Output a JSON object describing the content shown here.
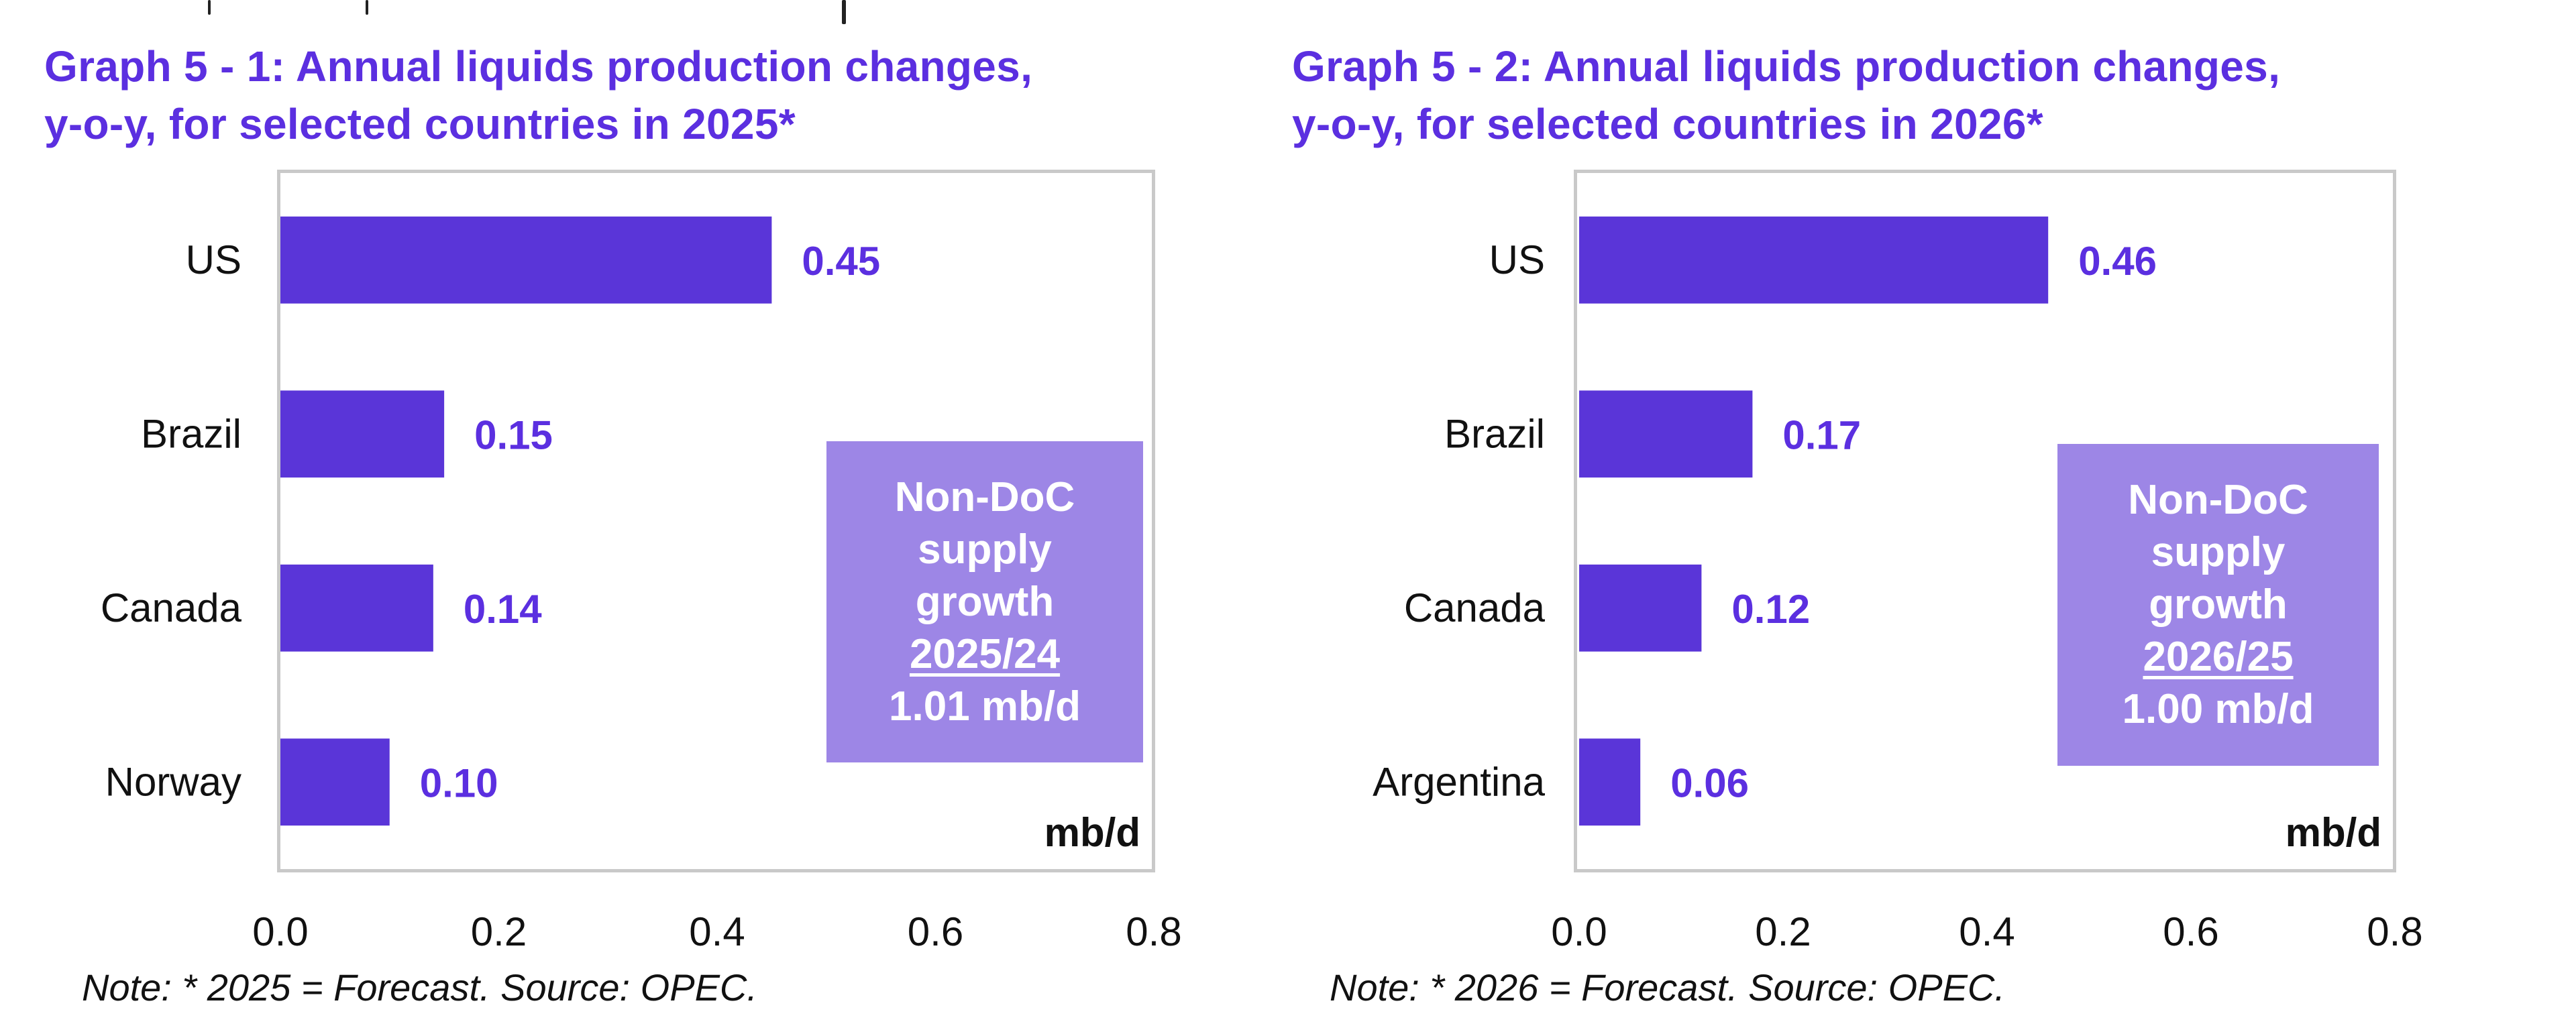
{
  "colors": {
    "title": "#5B2FE0",
    "bar": "#5A35D8",
    "callout_bg": "#9D86E6",
    "callout_text": "#FFFFFF",
    "frame": "#C9C9C9"
  },
  "chart_data": [
    {
      "type": "bar",
      "orientation": "horizontal",
      "title": "Graph 5 - 1: Annual liquids production changes, y-o-y, for selected countries in 2025*",
      "title_lines": [
        "Graph 5 - 1: Annual liquids production changes,",
        "y-o-y, for selected countries in 2025*"
      ],
      "categories": [
        "US",
        "Brazil",
        "Canada",
        "Norway"
      ],
      "values": [
        0.45,
        0.15,
        0.14,
        0.1
      ],
      "value_labels": [
        "0.45",
        "0.15",
        "0.14",
        "0.10"
      ],
      "xlim": [
        0.0,
        0.8
      ],
      "xticks": [
        "0.0",
        "0.2",
        "0.4",
        "0.6",
        "0.8"
      ],
      "xlabel": "",
      "ylabel": "",
      "unit_label": "mb/d",
      "grid": false,
      "legend": "none",
      "callout": {
        "lines": [
          "Non-DoC",
          "supply",
          "growth"
        ],
        "period": "2025/24",
        "value": "1.01 mb/d"
      },
      "note": "Note: * 2025 = Forecast. Source: OPEC."
    },
    {
      "type": "bar",
      "orientation": "horizontal",
      "title": "Graph 5 - 2: Annual liquids production changes, y-o-y, for selected countries in 2026*",
      "title_lines": [
        "Graph 5 - 2: Annual liquids production changes,",
        "y-o-y, for selected countries in 2026*"
      ],
      "categories": [
        "US",
        "Brazil",
        "Canada",
        "Argentina"
      ],
      "values": [
        0.46,
        0.17,
        0.12,
        0.06
      ],
      "value_labels": [
        "0.46",
        "0.17",
        "0.12",
        "0.06"
      ],
      "xlim": [
        0.0,
        0.8
      ],
      "xticks": [
        "0.0",
        "0.2",
        "0.4",
        "0.6",
        "0.8"
      ],
      "xlabel": "",
      "ylabel": "",
      "unit_label": "mb/d",
      "grid": false,
      "legend": "none",
      "callout": {
        "lines": [
          "Non-DoC",
          "supply",
          "growth"
        ],
        "period": "2026/25",
        "value": "1.00 mb/d"
      },
      "note": "Note: * 2026 = Forecast. Source: OPEC."
    }
  ]
}
